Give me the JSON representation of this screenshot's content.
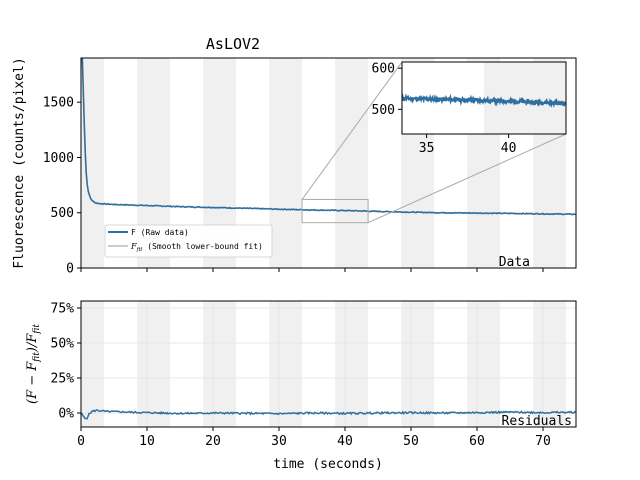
{
  "chart_data": [
    {
      "type": "line",
      "title": "AsLOV2",
      "ylabel": "Fluorescence (counts/pixel)",
      "xlim": [
        0,
        75
      ],
      "ylim": [
        0,
        1900
      ],
      "yticks": [
        0,
        500,
        1000,
        1500
      ],
      "yticklabels": [
        "0",
        "500",
        "1000",
        "1500"
      ],
      "shaded_bands": [
        [
          0,
          3.5
        ],
        [
          8.5,
          13.5
        ],
        [
          18.5,
          23.5
        ],
        [
          28.5,
          33.5
        ],
        [
          38.5,
          43.5
        ],
        [
          48.5,
          53.5
        ],
        [
          58.5,
          63.5
        ],
        [
          68.5,
          73.5
        ]
      ],
      "corner_label": "Data",
      "legend": {
        "placement": "lower-left",
        "entries": [
          {
            "label_main": "F",
            "label_sub": "",
            "label_rest": "  (Raw data)",
            "color": "#2f6f9f"
          },
          {
            "label_main": "F",
            "label_sub": "fit",
            "label_rest": " (Smooth lower-bound fit)",
            "color": "#bbbbbb"
          }
        ]
      },
      "series": [
        {
          "role": "raw",
          "color": "#2f6f9f",
          "x": [
            0.2,
            0.4,
            0.6,
            0.8,
            1.0,
            1.3,
            1.6,
            2.0,
            2.5,
            3.0,
            3.5,
            5,
            10,
            15,
            20,
            25,
            30,
            35,
            40,
            45,
            50,
            55,
            60,
            65,
            70,
            75
          ],
          "y": [
            1900,
            1500,
            1100,
            850,
            720,
            650,
            615,
            595,
            585,
            582,
            580,
            575,
            565,
            555,
            548,
            540,
            532,
            525,
            520,
            512,
            505,
            500,
            497,
            494,
            490,
            486
          ]
        },
        {
          "role": "fit",
          "color": "#bbbbbb",
          "x": [
            0.2,
            0.4,
            0.6,
            0.8,
            1.0,
            1.3,
            1.6,
            2.0,
            2.5,
            3.0,
            3.5,
            5,
            10,
            15,
            20,
            25,
            30,
            35,
            40,
            45,
            50,
            55,
            60,
            65,
            70,
            75
          ],
          "y": [
            1900,
            1500,
            1100,
            850,
            720,
            650,
            615,
            595,
            585,
            582,
            580,
            575,
            565,
            555,
            548,
            540,
            532,
            525,
            520,
            512,
            505,
            500,
            497,
            494,
            490,
            486
          ]
        }
      ],
      "zoom_box": {
        "xlim": [
          33.5,
          43.5
        ],
        "ylim": [
          410,
          620
        ]
      },
      "inset": {
        "xlim": [
          33.5,
          43.5
        ],
        "ylim": [
          440,
          615
        ],
        "xticks": [
          35,
          40
        ],
        "xticklabels": [
          "35",
          "40"
        ],
        "yticks": [
          500,
          600
        ],
        "yticklabels": [
          "500",
          "600"
        ]
      }
    },
    {
      "type": "line",
      "xlabel": "time (seconds)",
      "ylabel_main": "(F − F",
      "ylabel_sub1": "fit",
      "ylabel_mid": ")/F",
      "ylabel_sub2": "fit",
      "xlim": [
        0,
        75
      ],
      "ylim": [
        -0.1,
        0.8
      ],
      "xticks": [
        0,
        10,
        20,
        30,
        40,
        50,
        60,
        70
      ],
      "xticklabels": [
        "0",
        "10",
        "20",
        "30",
        "40",
        "50",
        "60",
        "70"
      ],
      "yticks": [
        0,
        0.25,
        0.5,
        0.75
      ],
      "yticklabels": [
        "0%",
        "25%",
        "50%",
        "75%"
      ],
      "grid": true,
      "corner_label": "Residuals",
      "series": [
        {
          "role": "residual",
          "color": "#2f6f9f",
          "x": [
            0,
            0.3,
            0.6,
            0.9,
            1.2,
            1.6,
            2.0,
            2.5,
            3,
            4,
            5,
            8,
            12,
            16,
            20,
            25,
            30,
            35,
            40,
            45,
            50,
            55,
            60,
            65,
            70,
            75
          ],
          "y": [
            0.0,
            -0.02,
            -0.04,
            -0.035,
            -0.01,
            0.01,
            0.015,
            0.02,
            0.015,
            0.01,
            0.01,
            0.005,
            0.0,
            -0.003,
            0.0,
            -0.002,
            -0.005,
            0.0,
            -0.003,
            0.0,
            0.002,
            0.0,
            0.003,
            0.006,
            0.003,
            0.005
          ]
        }
      ]
    }
  ]
}
